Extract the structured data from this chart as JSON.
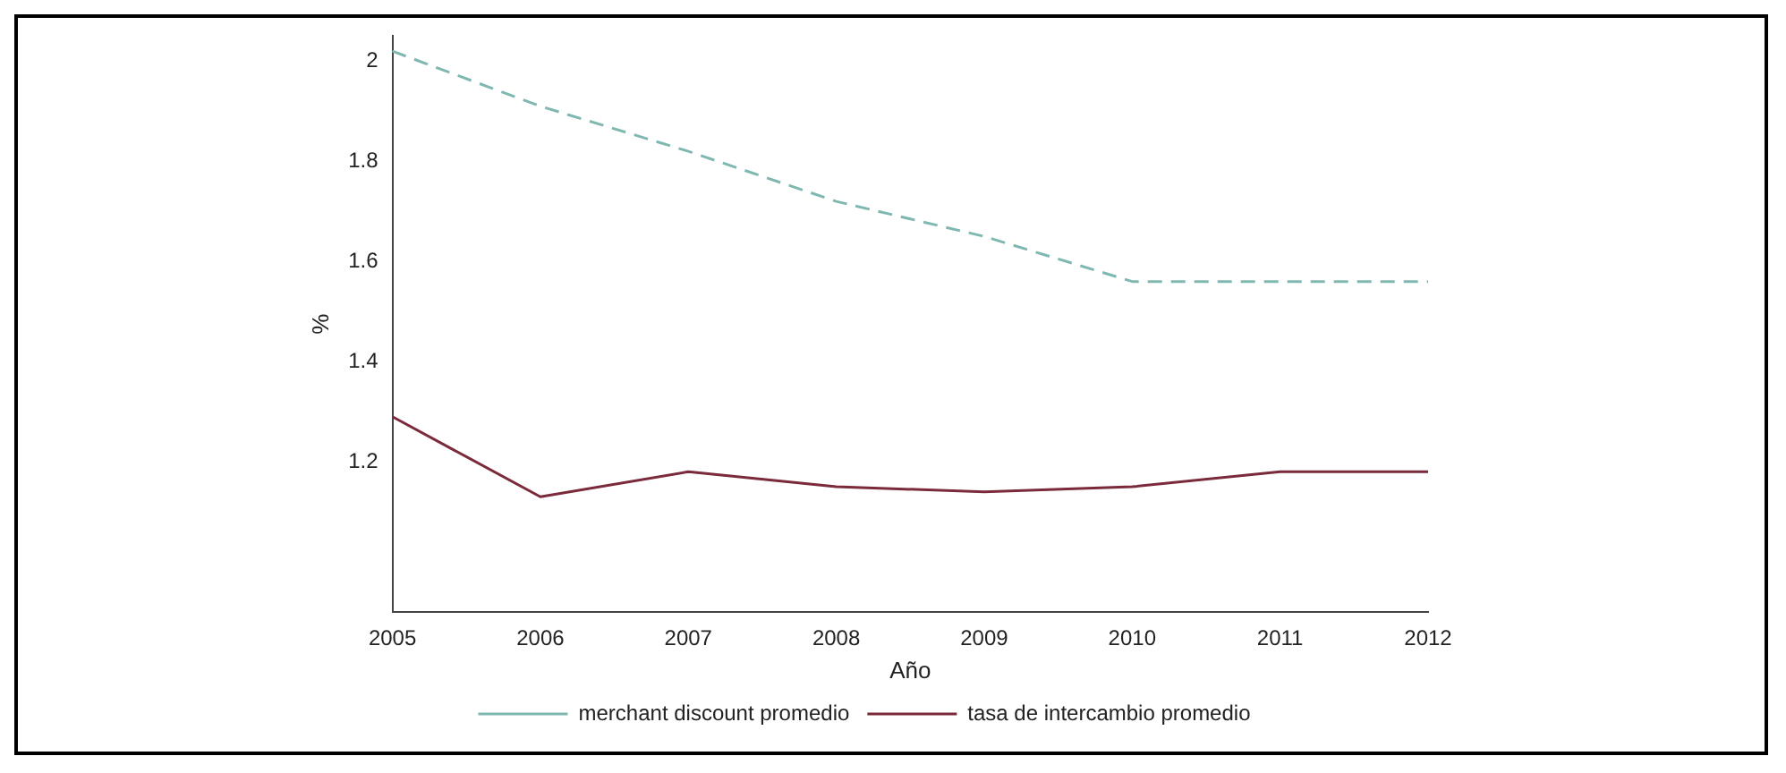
{
  "chart_data": {
    "type": "line",
    "xlabel": "Año",
    "ylabel": "%",
    "categories": [
      "2005",
      "2006",
      "2007",
      "2008",
      "2009",
      "2010",
      "2011",
      "2012"
    ],
    "series": [
      {
        "name": "merchant discount promedio",
        "color": "#7fb8b0",
        "line_style": "dashed",
        "values": [
          2.02,
          1.91,
          1.82,
          1.72,
          1.65,
          1.56,
          1.56,
          1.56
        ]
      },
      {
        "name": "tasa de intercambio promedio",
        "color": "#7a2a3a",
        "line_style": "solid",
        "values": [
          1.29,
          1.13,
          1.18,
          1.15,
          1.14,
          1.15,
          1.18,
          1.18
        ]
      }
    ],
    "ylim": [
      0.9,
      2.05
    ],
    "yticks": [
      1.2,
      1.4,
      1.6,
      1.8,
      2
    ],
    "grid": false,
    "legend": "bottom",
    "marker": "none"
  }
}
